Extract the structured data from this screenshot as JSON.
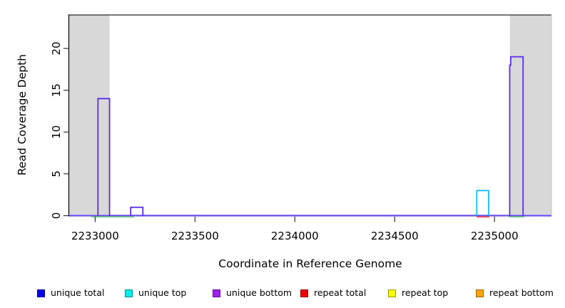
{
  "figure": {
    "xlabel": "Coordinate in Reference Genome",
    "ylabel": "Read Coverage Depth"
  },
  "legend": {
    "position": "bottom",
    "items": [
      {
        "label": "unique total",
        "fill": "#0000f0",
        "border": "#000099"
      },
      {
        "label": "unique top",
        "fill": "#00eeee",
        "border": "#008b8b"
      },
      {
        "label": "unique bottom",
        "fill": "#a020f0",
        "border": "#5c0f8b"
      },
      {
        "label": "repeat total",
        "fill": "#ee0000",
        "border": "#8b0000"
      },
      {
        "label": "repeat top",
        "fill": "#ffff00",
        "border": "#999900"
      },
      {
        "label": "repeat bottom",
        "fill": "#ffa500",
        "border": "#9a6400"
      }
    ]
  },
  "chart_data": {
    "type": "area",
    "style": "step-coverage-outline",
    "title": "",
    "xlabel": "Coordinate in Reference Genome",
    "ylabel": "Read Coverage Depth",
    "xlim": [
      2232870,
      2235285
    ],
    "ylim": [
      0,
      24
    ],
    "x_ticks": [
      2233000,
      2233500,
      2234000,
      2234500,
      2235000
    ],
    "y_ticks": [
      0,
      5,
      10,
      15,
      20
    ],
    "grid": false,
    "legend_position": "bottom",
    "shade_color": "#d8d8d8",
    "shaded_regions": [
      {
        "x0": 2232870,
        "x1": 2233072
      },
      {
        "x0": 2235077,
        "x1": 2235285
      }
    ],
    "coverage_features": [
      {
        "x0": 2233014,
        "x1": 2233072,
        "depth": 14,
        "series": "unique bottom",
        "color": "#5b2be8"
      },
      {
        "x0": 2233178,
        "x1": 2233239,
        "depth": 1,
        "series": "unique bottom",
        "color": "#5b2be8"
      },
      {
        "x0": 2234911,
        "x1": 2234971,
        "depth": 3,
        "series": "unique top",
        "color": "#2e9bff",
        "inner_color": "#00dcee"
      },
      {
        "x0": 2235076,
        "x1": 2235081,
        "depth": 18,
        "series": "unique bottom",
        "color": "#5b2be8",
        "join_next": true
      },
      {
        "x0": 2235081,
        "x1": 2235143,
        "depth": 19,
        "series": "unique bottom",
        "color": "#5b2be8"
      }
    ],
    "baseline": {
      "y": 0,
      "color": "#5b46ee",
      "halo_color": "#c9bcf7"
    },
    "baseline_segments": [
      {
        "x0": 2232981,
        "x1": 2233195,
        "color": "#7cd67c"
      },
      {
        "x0": 2234910,
        "x1": 2234974,
        "color": "#ff5050"
      },
      {
        "x0": 2235070,
        "x1": 2235149,
        "color": "#7cd67c"
      }
    ]
  }
}
